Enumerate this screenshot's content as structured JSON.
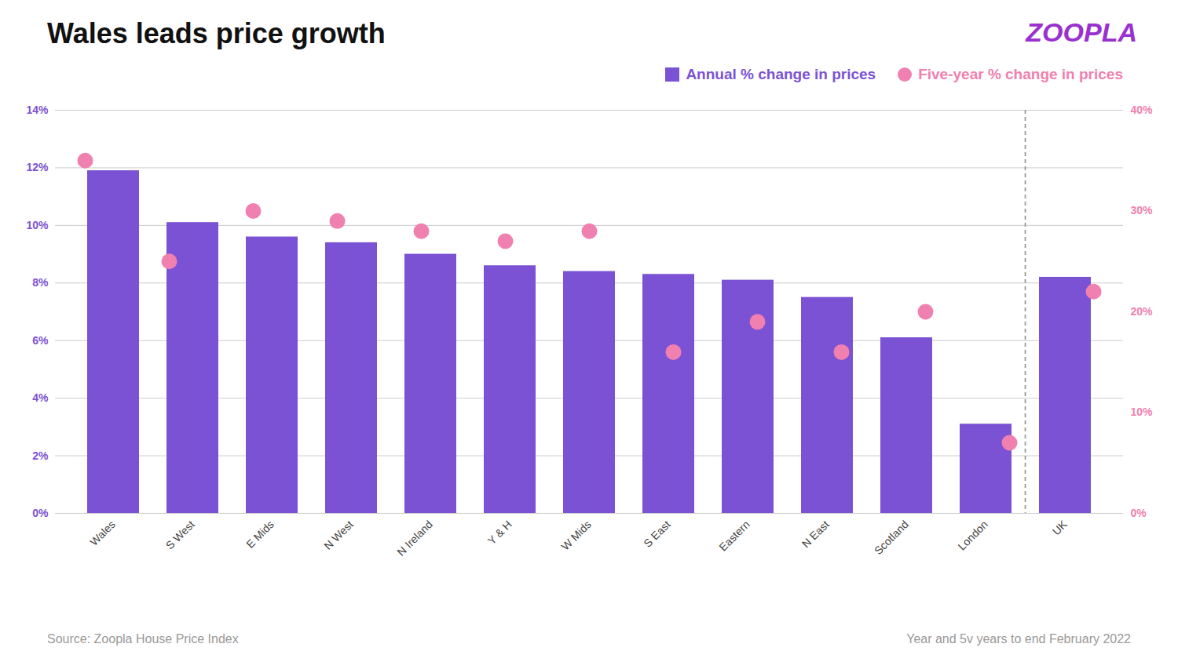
{
  "chart_data": {
    "type": "bar",
    "title": "Wales leads price growth",
    "categories": [
      "Wales",
      "S West",
      "E Mids",
      "N West",
      "N Ireland",
      "Y & H",
      "W Mids",
      "S East",
      "Eastern",
      "N East",
      "Scotland",
      "London",
      "UK"
    ],
    "series": [
      {
        "name": "Annual % change in prices",
        "type": "bar",
        "color": "#7B52D3",
        "values": [
          11.9,
          10.1,
          9.6,
          9.4,
          9.0,
          8.6,
          8.4,
          8.3,
          8.1,
          7.5,
          6.1,
          3.1,
          8.2
        ]
      },
      {
        "name": "Five-year % change in prices",
        "type": "scatter",
        "axis": "y2",
        "marker": "circle",
        "color": "#F080B0",
        "values": [
          35,
          25,
          30,
          29,
          28,
          27,
          28,
          16,
          19,
          16,
          20,
          7,
          22
        ]
      }
    ],
    "ylim": [
      0,
      14
    ],
    "yticks": [
      {
        "value": 0,
        "label": "0%"
      },
      {
        "value": 2,
        "label": "2%"
      },
      {
        "value": 4,
        "label": "4%"
      },
      {
        "value": 6,
        "label": "6%"
      },
      {
        "value": 8,
        "label": "8%"
      },
      {
        "value": 10,
        "label": "10%"
      },
      {
        "value": 12,
        "label": "12%"
      },
      {
        "value": 14,
        "label": "14%"
      }
    ],
    "y2lim": [
      0,
      40
    ],
    "y2ticks": [
      {
        "value": 0,
        "label": "0%"
      },
      {
        "value": 10,
        "label": "10%"
      },
      {
        "value": 20,
        "label": "20%"
      },
      {
        "value": 30,
        "label": "30%"
      },
      {
        "value": 40,
        "label": "40%"
      }
    ],
    "grid": true,
    "legend": "upper right",
    "annotations": [
      "Source: Zoopla House Price Index",
      "Year and 5v years to end February 2022",
      "ZOOPLA"
    ]
  }
}
